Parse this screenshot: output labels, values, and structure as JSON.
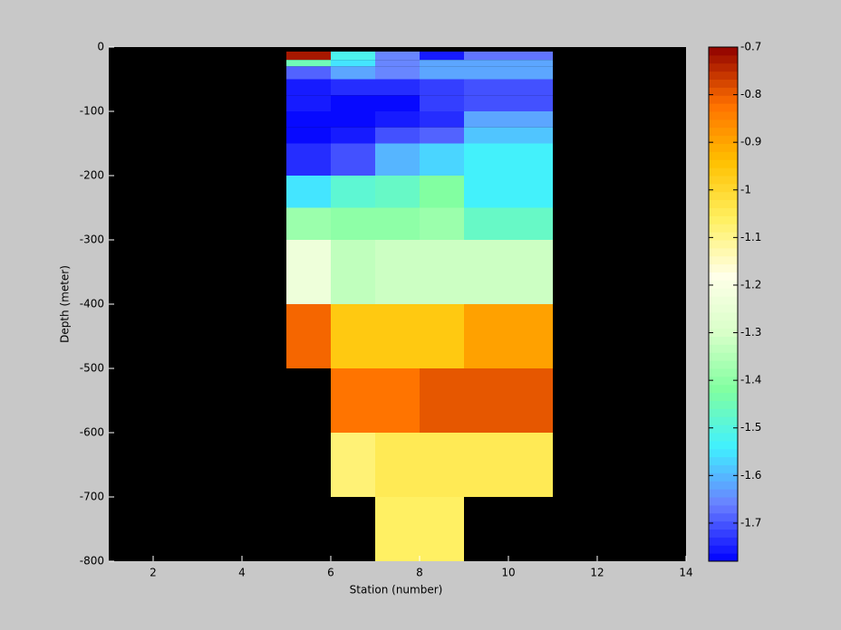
{
  "chart_data": {
    "type": "heatmap",
    "x_label": "Station (number)",
    "y_label": "Depth (meter)",
    "x_edges": [
      5,
      6,
      7,
      8,
      9,
      11
    ],
    "y_edges": [
      -7,
      -20,
      -30,
      -50,
      -75,
      -100,
      -125,
      -150,
      -200,
      -250,
      -300,
      -400,
      -500,
      -600,
      -700,
      -800
    ],
    "values": [
      [
        -0.72,
        -1.52,
        -1.65,
        -1.76,
        -1.67
      ],
      [
        -1.45,
        -1.55,
        -1.65,
        -1.62,
        -1.62
      ],
      [
        -1.68,
        -1.62,
        -1.66,
        -1.62,
        -1.62
      ],
      [
        -1.76,
        -1.74,
        -1.74,
        -1.72,
        -1.7
      ],
      [
        -1.76,
        -1.78,
        -1.78,
        -1.72,
        -1.7
      ],
      [
        -1.78,
        -1.78,
        -1.76,
        -1.74,
        -1.62
      ],
      [
        -1.78,
        -1.76,
        -1.7,
        -1.69,
        -1.58
      ],
      [
        -1.73,
        -1.7,
        -1.6,
        -1.57,
        -1.53
      ],
      [
        -1.56,
        -1.48,
        -1.46,
        -1.41,
        -1.53
      ],
      [
        -1.38,
        -1.4,
        -1.4,
        -1.38,
        -1.47
      ],
      [
        -1.23,
        -1.33,
        -1.31,
        -1.31,
        -1.31
      ],
      [
        -0.81,
        -0.97,
        -0.97,
        -0.97,
        -0.9
      ],
      [
        null,
        -0.82,
        -0.82,
        -0.79,
        -0.79
      ],
      [
        null,
        -1.08,
        -1.05,
        -1.05,
        -1.05
      ],
      [
        null,
        null,
        -1.07,
        -1.07,
        null
      ]
    ],
    "xlim": [
      1,
      14
    ],
    "xticks": [
      2,
      4,
      6,
      8,
      10,
      12,
      14
    ],
    "ylim": [
      -800,
      0
    ],
    "yticks": [
      0,
      -100,
      -200,
      -300,
      -400,
      -500,
      -600,
      -700,
      -800
    ],
    "clim": [
      -1.78,
      -0.7
    ],
    "cticks": [
      -0.7,
      -0.8,
      -0.9,
      -1,
      -1.1,
      -1.2,
      -1.3,
      -1.4,
      -1.5,
      -1.6,
      -1.7
    ],
    "colormap": [
      "#0000ff",
      "#6a80ff",
      "#40f0ff",
      "#80ffa0",
      "#d8ffc8",
      "#ffffe8",
      "#fff060",
      "#ffc000",
      "#ff7000",
      "#900000"
    ],
    "background": "#000000"
  }
}
